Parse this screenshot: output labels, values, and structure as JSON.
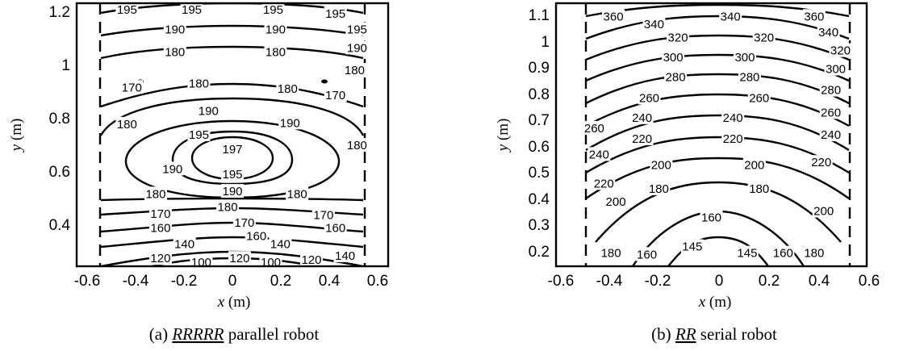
{
  "chart_data": [
    {
      "type": "contour",
      "caption_letter": "(a)",
      "caption_robot": "RRRRR",
      "caption_rest": "parallel robot",
      "xlabel_var": "x",
      "xlabel_unit": "(m)",
      "ylabel_var": "y",
      "ylabel_unit": "(m)",
      "xlim": [
        -0.65,
        0.65
      ],
      "ylim": [
        0.23,
        1.23
      ],
      "xticks": [
        "-0.6",
        "-0.4",
        "-0.2",
        "0",
        "0.2",
        "0.4",
        "0.6"
      ],
      "yticks": [
        "0.4",
        "0.6",
        "0.8",
        "1",
        "1.2"
      ],
      "boundary_x": [
        -0.49,
        0.49
      ],
      "contour_levels": [
        100,
        120,
        140,
        160,
        170,
        180,
        190,
        195,
        197
      ],
      "level_labels": [
        {
          "text": "195",
          "x": -0.44,
          "y": 1.205
        },
        {
          "text": "195",
          "x": -0.17,
          "y": 1.205
        },
        {
          "text": "195",
          "x": 0.17,
          "y": 1.205
        },
        {
          "text": "195",
          "x": 0.43,
          "y": 1.19
        },
        {
          "text": "190",
          "x": -0.24,
          "y": 1.13
        },
        {
          "text": "190",
          "x": 0.18,
          "y": 1.13
        },
        {
          "text": "195",
          "x": 0.52,
          "y": 1.13
        },
        {
          "text": "180",
          "x": -0.24,
          "y": 1.045
        },
        {
          "text": "180",
          "x": 0.18,
          "y": 1.045
        },
        {
          "text": "190",
          "x": 0.52,
          "y": 1.06
        },
        {
          "text": "180",
          "x": 0.51,
          "y": 0.975
        },
        {
          "text": "170",
          "x": -0.42,
          "y": 0.91
        },
        {
          "text": "180",
          "x": -0.14,
          "y": 0.925
        },
        {
          "text": "180",
          "x": 0.23,
          "y": 0.905
        },
        {
          "text": "170",
          "x": 0.43,
          "y": 0.88
        },
        {
          "text": "190",
          "x": -0.1,
          "y": 0.82
        },
        {
          "text": "180",
          "x": -0.44,
          "y": 0.77
        },
        {
          "text": "195",
          "x": -0.14,
          "y": 0.73
        },
        {
          "text": "190",
          "x": 0.24,
          "y": 0.775
        },
        {
          "text": "180",
          "x": 0.52,
          "y": 0.69
        },
        {
          "text": "197",
          "x": 0.0,
          "y": 0.675
        },
        {
          "text": "190",
          "x": -0.25,
          "y": 0.6
        },
        {
          "text": "195",
          "x": 0.0,
          "y": 0.58
        },
        {
          "text": "190",
          "x": 0.0,
          "y": 0.515
        },
        {
          "text": "180",
          "x": -0.32,
          "y": 0.505
        },
        {
          "text": "180",
          "x": 0.27,
          "y": 0.505
        },
        {
          "text": "180",
          "x": -0.02,
          "y": 0.455
        },
        {
          "text": "170",
          "x": -0.3,
          "y": 0.43
        },
        {
          "text": "170",
          "x": 0.05,
          "y": 0.395
        },
        {
          "text": "170",
          "x": 0.38,
          "y": 0.425
        },
        {
          "text": "160",
          "x": -0.3,
          "y": 0.375
        },
        {
          "text": "160",
          "x": 0.1,
          "y": 0.345
        },
        {
          "text": "160",
          "x": 0.43,
          "y": 0.375
        },
        {
          "text": "140",
          "x": -0.2,
          "y": 0.315
        },
        {
          "text": "140",
          "x": 0.2,
          "y": 0.315
        },
        {
          "text": "120",
          "x": -0.3,
          "y": 0.26
        },
        {
          "text": "120",
          "x": 0.03,
          "y": 0.26
        },
        {
          "text": "120",
          "x": 0.33,
          "y": 0.255
        },
        {
          "text": "100",
          "x": -0.13,
          "y": 0.245
        },
        {
          "text": "100",
          "x": 0.16,
          "y": 0.245
        },
        {
          "text": "140",
          "x": 0.47,
          "y": 0.27
        }
      ]
    },
    {
      "type": "contour",
      "caption_letter": "(b)",
      "caption_robot": "RR",
      "caption_rest": "serial robot",
      "xlabel_var": "x",
      "xlabel_unit": "(m)",
      "ylabel_var": "y",
      "ylabel_unit": "(m)",
      "xlim": [
        -0.65,
        0.65
      ],
      "ylim": [
        0.15,
        1.15
      ],
      "xticks": [
        "-0.6",
        "-0.4",
        "-0.2",
        "0",
        "0.2",
        "0.4",
        "0.6"
      ],
      "yticks": [
        "0.2",
        "0.3",
        "0.4",
        "0.5",
        "0.6",
        "0.7",
        "0.8",
        "0.9",
        "1",
        "1.1"
      ],
      "boundary_x": [
        -0.5,
        0.5
      ],
      "contour_levels": [
        145,
        160,
        180,
        200,
        220,
        240,
        260,
        280,
        300,
        320,
        340,
        360
      ],
      "level_labels": [
        {
          "text": "360",
          "x": -0.41,
          "y": 1.1
        },
        {
          "text": "340",
          "x": -0.24,
          "y": 1.07
        },
        {
          "text": "340",
          "x": 0.08,
          "y": 1.1
        },
        {
          "text": "360",
          "x": 0.43,
          "y": 1.1
        },
        {
          "text": "340",
          "x": 0.49,
          "y": 1.04
        },
        {
          "text": "320",
          "x": -0.14,
          "y": 1.02
        },
        {
          "text": "320",
          "x": 0.22,
          "y": 1.02
        },
        {
          "text": "320",
          "x": 0.54,
          "y": 0.97
        },
        {
          "text": "300",
          "x": -0.16,
          "y": 0.945
        },
        {
          "text": "300",
          "x": 0.14,
          "y": 0.945
        },
        {
          "text": "300",
          "x": 0.52,
          "y": 0.9
        },
        {
          "text": "280",
          "x": -0.15,
          "y": 0.87
        },
        {
          "text": "280",
          "x": 0.16,
          "y": 0.87
        },
        {
          "text": "280",
          "x": 0.5,
          "y": 0.82
        },
        {
          "text": "260",
          "x": -0.26,
          "y": 0.79
        },
        {
          "text": "260",
          "x": 0.2,
          "y": 0.79
        },
        {
          "text": "260",
          "x": 0.5,
          "y": 0.735
        },
        {
          "text": "240",
          "x": -0.29,
          "y": 0.715
        },
        {
          "text": "240",
          "x": 0.09,
          "y": 0.715
        },
        {
          "text": "260",
          "x": -0.49,
          "y": 0.675
        },
        {
          "text": "240",
          "x": 0.5,
          "y": 0.65
        },
        {
          "text": "220",
          "x": -0.29,
          "y": 0.635
        },
        {
          "text": "220",
          "x": 0.09,
          "y": 0.635
        },
        {
          "text": "240",
          "x": -0.47,
          "y": 0.575
        },
        {
          "text": "220",
          "x": 0.46,
          "y": 0.545
        },
        {
          "text": "200",
          "x": -0.21,
          "y": 0.535
        },
        {
          "text": "200",
          "x": 0.18,
          "y": 0.535
        },
        {
          "text": "220",
          "x": -0.45,
          "y": 0.465
        },
        {
          "text": "180",
          "x": -0.22,
          "y": 0.445
        },
        {
          "text": "180",
          "x": 0.2,
          "y": 0.445
        },
        {
          "text": "200",
          "x": -0.4,
          "y": 0.395
        },
        {
          "text": "200",
          "x": 0.47,
          "y": 0.36
        },
        {
          "text": "160",
          "x": 0.0,
          "y": 0.335
        },
        {
          "text": "180",
          "x": -0.42,
          "y": 0.2
        },
        {
          "text": "160",
          "x": -0.27,
          "y": 0.195
        },
        {
          "text": "145",
          "x": -0.08,
          "y": 0.225
        },
        {
          "text": "145",
          "x": 0.15,
          "y": 0.2
        },
        {
          "text": "160",
          "x": 0.3,
          "y": 0.2
        },
        {
          "text": "180",
          "x": 0.43,
          "y": 0.2
        }
      ]
    }
  ]
}
